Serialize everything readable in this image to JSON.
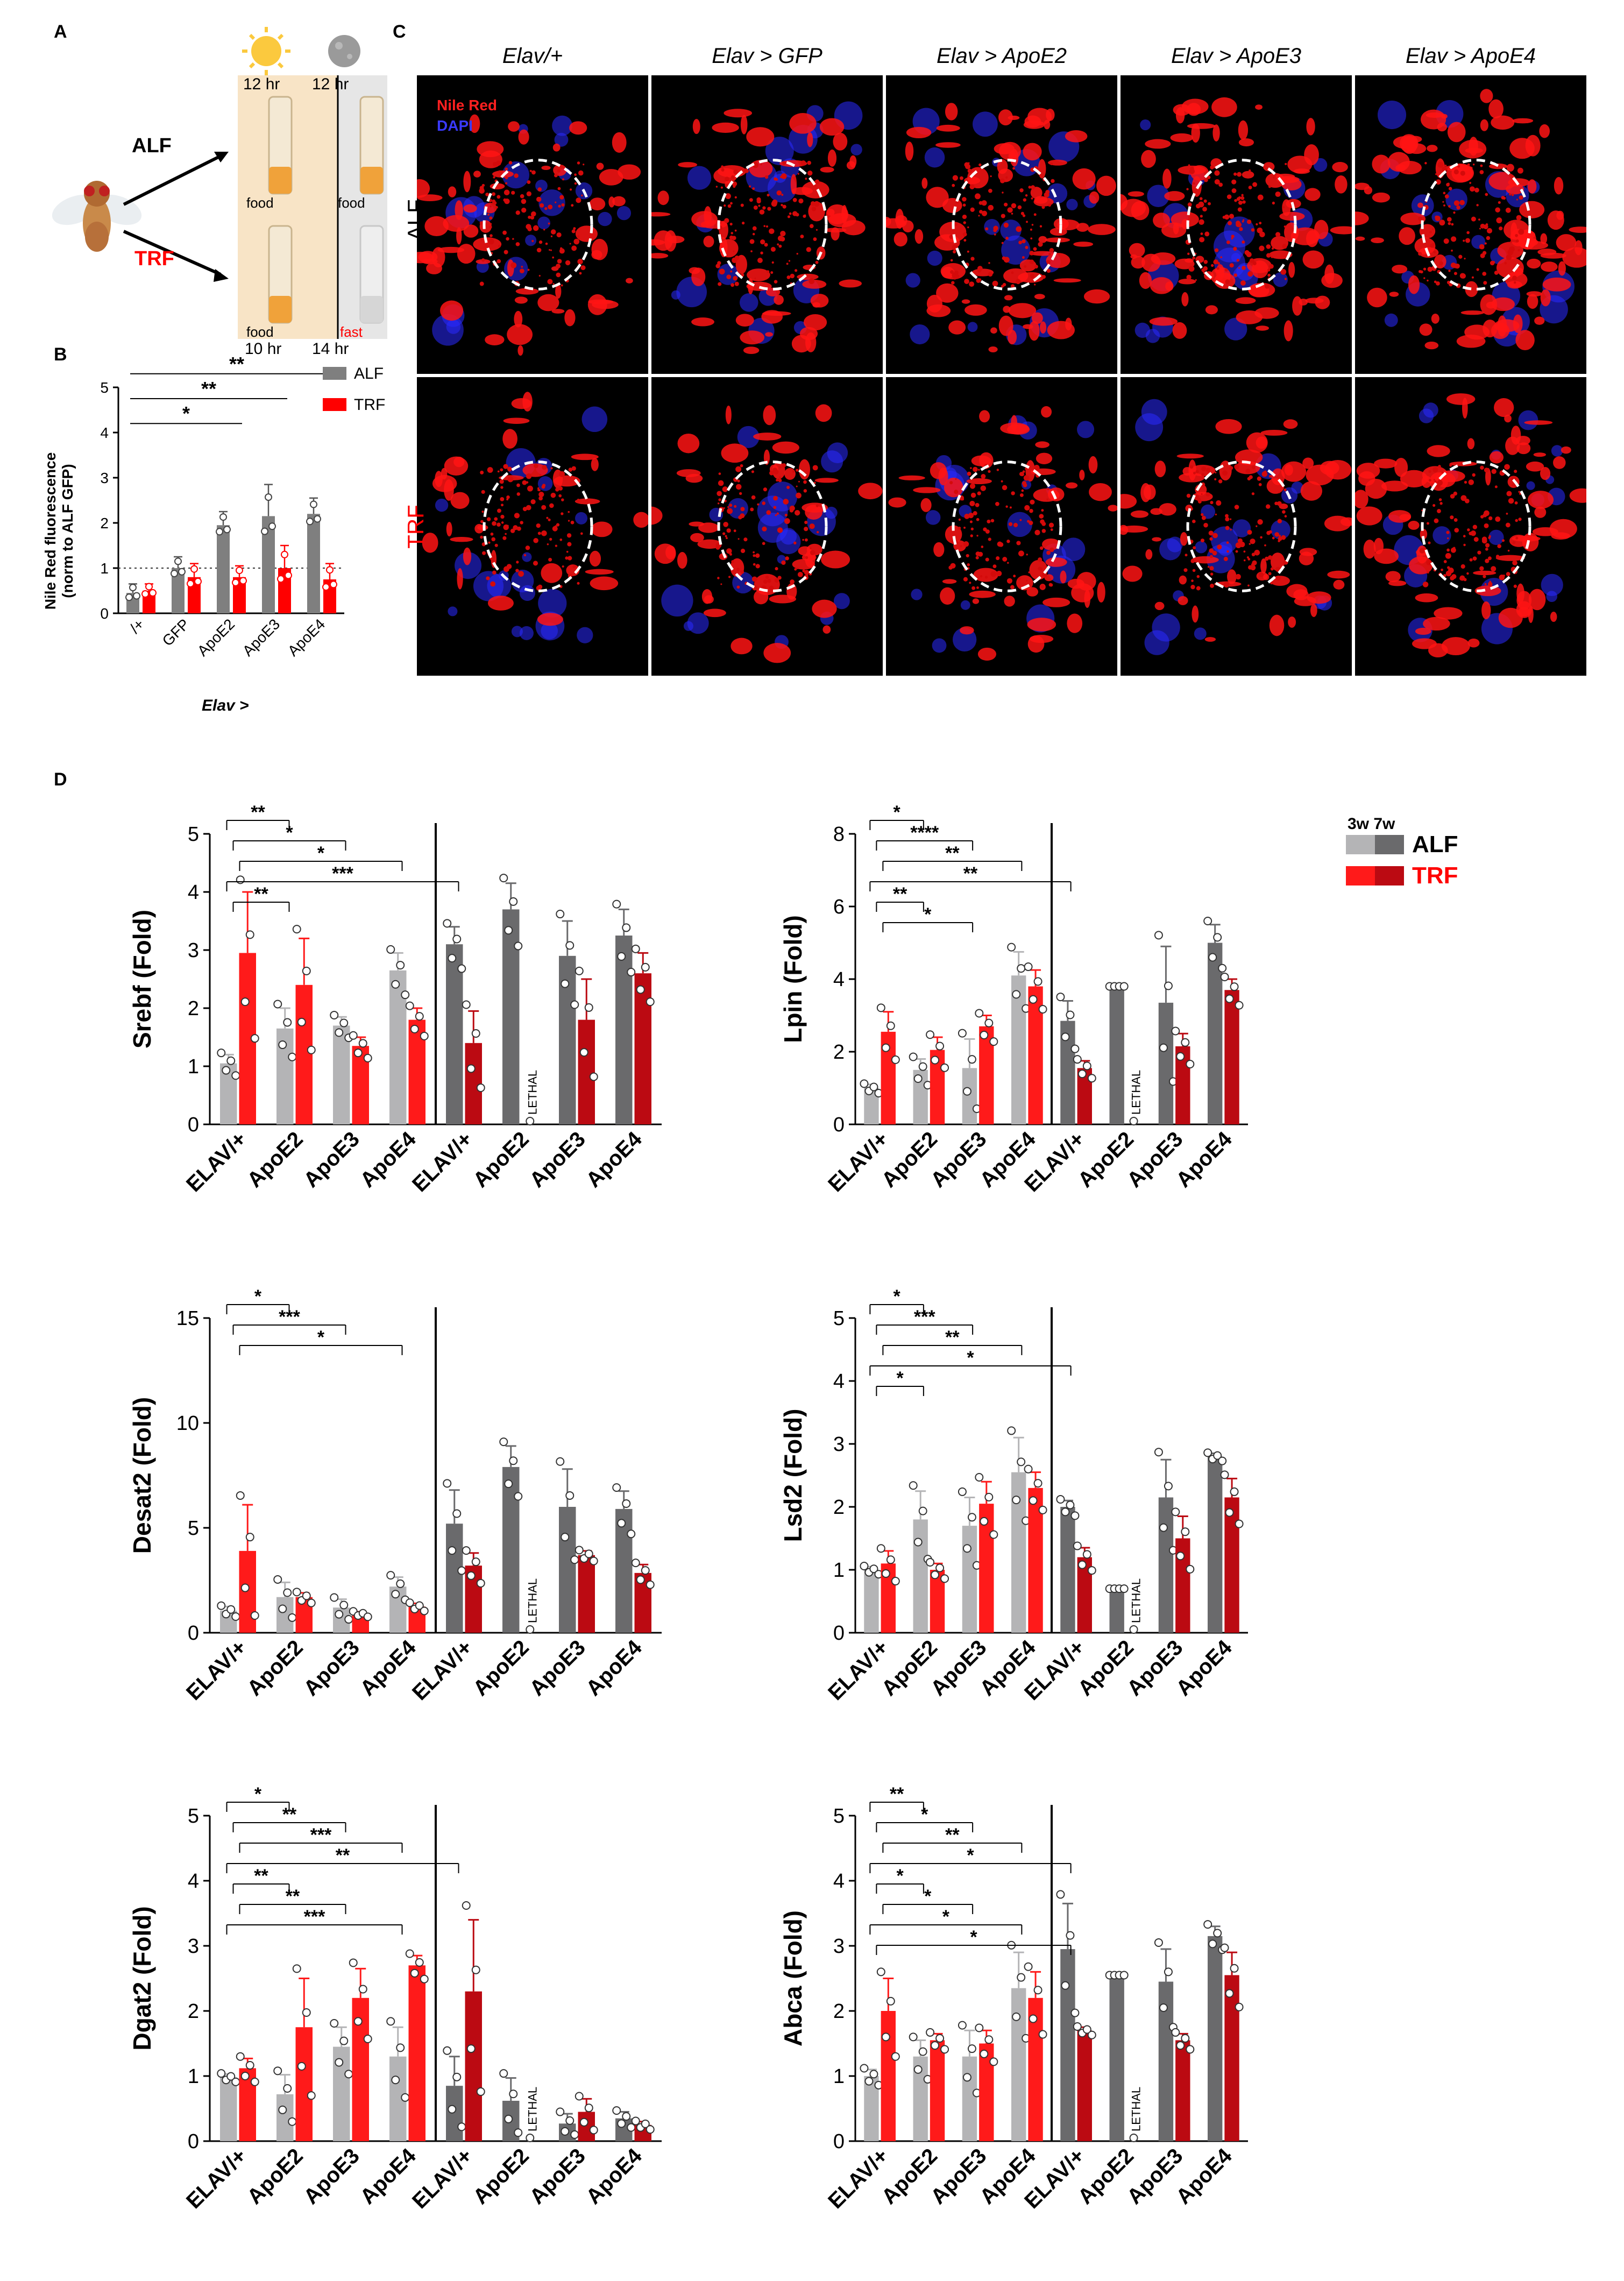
{
  "panels": {
    "A": {
      "letter": "A",
      "day_time": "12 hr",
      "night_time": "12 hr",
      "alf_label": "ALF",
      "trf_label": "TRF",
      "alf_day": "food",
      "alf_night": "food",
      "trf_day": "food",
      "trf_night": "fast",
      "trf_day_time": "10 hr",
      "trf_night_time": "14 hr"
    },
    "B": {
      "letter": "B",
      "ylabel_line1": "Nile  Red fluorescence",
      "ylabel_line2": "(norm to ALF  GFP)",
      "xlabel": "Elav >",
      "legend": [
        "ALF",
        "TRF"
      ],
      "sig": [
        "*",
        "**",
        "**"
      ]
    },
    "C": {
      "letter": "C",
      "col_titles": [
        "Elav/+",
        "Elav > GFP",
        "Elav > ApoE2",
        "Elav > ApoE3",
        "Elav > ApoE4"
      ],
      "row_labels": [
        "ALF",
        "TRF"
      ],
      "stain_nile": "Nile Red",
      "stain_dapi": "DAPI"
    },
    "D": {
      "letter": "D",
      "legend_ages": "3w 7w",
      "legend_alf": "ALF",
      "legend_trf": "TRF",
      "lethal": "LETHAL"
    }
  },
  "colors": {
    "alf_3w": "#b4b4b6",
    "alf_7w": "#6a6a6c",
    "trf_3w": "#ff1a1a",
    "trf_7w": "#bb0a12",
    "alf_b": "#7f7f7f",
    "trf_b": "#ff0000"
  },
  "chart_data": [
    {
      "id": "B",
      "type": "bar",
      "title": "",
      "ylabel": "Nile  Red fluorescence (norm to ALF  GFP)",
      "xlabel": "Elav >",
      "categories": [
        "/+",
        "GFP",
        "ApoE2",
        "ApoE3",
        "ApoE4"
      ],
      "ylim": [
        0,
        5
      ],
      "yticks": [
        0,
        1,
        2,
        3,
        4,
        5
      ],
      "series": [
        {
          "name": "ALF",
          "values": [
            0.45,
            1.0,
            1.95,
            2.15,
            2.2
          ],
          "errors": [
            0.2,
            0.25,
            0.3,
            0.7,
            0.35
          ]
        },
        {
          "name": "TRF",
          "values": [
            0.5,
            0.8,
            0.8,
            1.0,
            0.75
          ],
          "errors": [
            0.15,
            0.3,
            0.25,
            0.5,
            0.35
          ]
        }
      ],
      "reference_line": 1,
      "significance": [
        "*",
        "**",
        "**"
      ]
    },
    {
      "id": "Srebf",
      "type": "bar",
      "ylabel": "Srebf (Fold)",
      "categories": [
        "ELAV/+",
        "ApoE2",
        "ApoE3",
        "ApoE4",
        "ELAV/+",
        "ApoE2",
        "ApoE3",
        "ApoE4"
      ],
      "ylim": [
        0,
        5
      ],
      "yticks": [
        0,
        1,
        2,
        3,
        4,
        5
      ],
      "series": [
        {
          "name": "ALF",
          "values": [
            1.05,
            1.65,
            1.7,
            2.65,
            3.1,
            3.7,
            2.9,
            3.25
          ],
          "errors": [
            0.15,
            0.35,
            0.15,
            0.3,
            0.3,
            0.45,
            0.6,
            0.45
          ]
        },
        {
          "name": "TRF",
          "values": [
            2.95,
            2.4,
            1.35,
            1.8,
            1.4,
            0,
            1.8,
            2.6
          ],
          "errors": [
            1.05,
            0.8,
            0.15,
            0.2,
            0.55,
            0,
            0.7,
            0.35
          ]
        }
      ],
      "lethal_index": 5,
      "significance": [
        "**",
        "*",
        "*",
        "***",
        "**"
      ]
    },
    {
      "id": "Lpin",
      "type": "bar",
      "ylabel": "Lpin (Fold)",
      "categories": [
        "ELAV/+",
        "ApoE2",
        "ApoE3",
        "ApoE4",
        "ELAV/+",
        "ApoE2",
        "ApoE3",
        "ApoE4"
      ],
      "ylim": [
        0,
        8
      ],
      "yticks": [
        0,
        2,
        4,
        6,
        8
      ],
      "series": [
        {
          "name": "ALF",
          "values": [
            1.0,
            1.5,
            1.55,
            4.1,
            2.85,
            3.8,
            3.35,
            5.0
          ],
          "errors": [
            0.1,
            0.3,
            0.8,
            0.65,
            0.55,
            0,
            1.55,
            0.5
          ]
        },
        {
          "name": "TRF",
          "values": [
            2.55,
            2.05,
            2.7,
            3.8,
            1.55,
            0,
            2.15,
            3.7
          ],
          "errors": [
            0.55,
            0.35,
            0.3,
            0.45,
            0.2,
            0,
            0.35,
            0.3
          ]
        }
      ],
      "lethal_index": 5,
      "significance": [
        "*",
        "****",
        "**",
        "**",
        "**",
        "*"
      ]
    },
    {
      "id": "Desat2",
      "type": "bar",
      "ylabel": "Desat2 (Fold)",
      "categories": [
        "ELAV/+",
        "ApoE2",
        "ApoE3",
        "ApoE4",
        "ELAV/+",
        "ApoE2",
        "ApoE3",
        "ApoE4"
      ],
      "ylim": [
        0,
        15
      ],
      "yticks": [
        0,
        5,
        10,
        15
      ],
      "series": [
        {
          "name": "ALF",
          "values": [
            1.05,
            1.7,
            1.2,
            2.2,
            5.2,
            7.9,
            6.0,
            5.9
          ],
          "errors": [
            0.2,
            0.7,
            0.4,
            0.45,
            1.6,
            1.0,
            1.8,
            0.85
          ]
        },
        {
          "name": "TRF",
          "values": [
            3.9,
            1.7,
            0.9,
            1.25,
            3.2,
            0,
            3.7,
            2.85
          ],
          "errors": [
            2.2,
            0.2,
            0.1,
            0.15,
            0.6,
            0,
            0.2,
            0.4
          ]
        }
      ],
      "lethal_index": 5,
      "significance": [
        "*",
        "***",
        "*"
      ]
    },
    {
      "id": "Lsd2",
      "type": "bar",
      "ylabel": "Lsd2 (Fold)",
      "categories": [
        "ELAV/+",
        "ApoE2",
        "ApoE3",
        "ApoE4",
        "ELAV/+",
        "ApoE2",
        "ApoE3",
        "ApoE4"
      ],
      "ylim": [
        0,
        5
      ],
      "yticks": [
        0,
        1,
        2,
        3,
        4,
        5
      ],
      "series": [
        {
          "name": "ALF",
          "values": [
            1.0,
            1.8,
            1.7,
            2.55,
            2.0,
            0.7,
            2.15,
            2.8
          ],
          "errors": [
            0.05,
            0.45,
            0.45,
            0.55,
            0.1,
            0,
            0.6,
            0.05
          ]
        },
        {
          "name": "TRF",
          "values": [
            1.1,
            1.0,
            2.05,
            2.3,
            1.2,
            0,
            1.5,
            2.15
          ],
          "errors": [
            0.2,
            0.1,
            0.35,
            0.25,
            0.15,
            0,
            0.35,
            0.3
          ]
        }
      ],
      "lethal_index": 5,
      "significance": [
        "*",
        "***",
        "**",
        "*",
        "*"
      ]
    },
    {
      "id": "Dgat2",
      "type": "bar",
      "ylabel": "Dgat2 (Fold)",
      "categories": [
        "ELAV/+",
        "ApoE2",
        "ApoE3",
        "ApoE4",
        "ELAV/+",
        "ApoE2",
        "ApoE3",
        "ApoE4"
      ],
      "ylim": [
        0,
        5
      ],
      "yticks": [
        0,
        1,
        2,
        3,
        4,
        5
      ],
      "series": [
        {
          "name": "ALF",
          "values": [
            0.98,
            0.72,
            1.45,
            1.3,
            0.85,
            0.62,
            0.27,
            0.35
          ],
          "errors": [
            0.05,
            0.3,
            0.3,
            0.45,
            0.45,
            0.35,
            0.15,
            0.1
          ]
        },
        {
          "name": "TRF",
          "values": [
            1.12,
            1.75,
            2.2,
            2.7,
            2.3,
            0,
            0.45,
            0.25
          ],
          "errors": [
            0.15,
            0.75,
            0.45,
            0.15,
            1.1,
            0,
            0.2,
            0.05
          ]
        }
      ],
      "lethal_index": 5,
      "significance": [
        "*",
        "**",
        "***",
        "**",
        "**",
        "**",
        "***"
      ]
    },
    {
      "id": "Abca",
      "type": "bar",
      "ylabel": "Abca (Fold)",
      "categories": [
        "ELAV/+",
        "ApoE2",
        "ApoE3",
        "ApoE4",
        "ELAV/+",
        "ApoE2",
        "ApoE3",
        "ApoE4"
      ],
      "ylim": [
        0,
        5
      ],
      "yticks": [
        0,
        1,
        2,
        3,
        4,
        5
      ],
      "series": [
        {
          "name": "ALF",
          "values": [
            1.0,
            1.3,
            1.3,
            2.35,
            2.95,
            2.55,
            2.45,
            3.15
          ],
          "errors": [
            0.1,
            0.25,
            0.4,
            0.55,
            0.7,
            0,
            0.5,
            0.15
          ]
        },
        {
          "name": "TRF",
          "values": [
            2.0,
            1.55,
            1.5,
            2.2,
            1.7,
            0,
            1.55,
            2.55
          ],
          "errors": [
            0.5,
            0.1,
            0.2,
            0.4,
            0.05,
            0,
            0.1,
            0.35
          ]
        }
      ],
      "lethal_index": 5,
      "significance": [
        "**",
        "*",
        "**",
        "*",
        "*",
        "*",
        "*",
        "*"
      ]
    }
  ]
}
